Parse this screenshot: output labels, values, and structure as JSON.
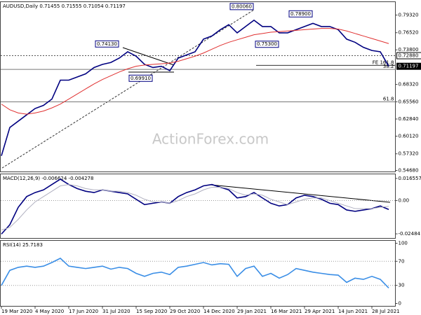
{
  "chart_data": [
    {
      "type": "line",
      "title": "AUDUSD,Daily  0.71455 0.71555 0.71054 0.71197",
      "categories": [
        "19 Mar 2020",
        null,
        null,
        null,
        "4 May 2020",
        null,
        null,
        null,
        "17 Jun 2020",
        null,
        null,
        null,
        "31 Jul 2020",
        null,
        null,
        null,
        "15 Sep 2020",
        null,
        null,
        null,
        "29 Oct 2020",
        null,
        null,
        null,
        "14 Dec 2020",
        null,
        null,
        null,
        "29 Jan 2021",
        null,
        null,
        null,
        "16 Mar 2021",
        null,
        null,
        null,
        "29 Apr 2021",
        null,
        null,
        null,
        "14 Jun 2021",
        null,
        null,
        null,
        "28 Jul 2021",
        null,
        null
      ],
      "series": [
        {
          "color": "#000080",
          "values": [
            0.57,
            0.615,
            0.625,
            0.635,
            0.645,
            0.65,
            0.66,
            0.69,
            0.69,
            0.695,
            0.7,
            0.71,
            0.715,
            0.718,
            0.725,
            0.735,
            0.728,
            0.715,
            0.71,
            0.712,
            0.705,
            0.725,
            0.73,
            0.735,
            0.755,
            0.76,
            0.77,
            0.778,
            0.765,
            0.775,
            0.785,
            0.775,
            0.775,
            0.765,
            0.765,
            0.77,
            0.775,
            0.78,
            0.775,
            0.775,
            0.77,
            0.755,
            0.75,
            0.742,
            0.737,
            0.735,
            0.71197
          ]
        },
        {
          "color": "#e03030",
          "values": [
            0.652,
            0.643,
            0.638,
            0.636,
            0.638,
            0.641,
            0.646,
            0.652,
            0.66,
            0.668,
            0.676,
            0.684,
            0.691,
            0.697,
            0.703,
            0.708,
            0.712,
            0.714,
            0.715,
            0.716,
            0.717,
            0.72,
            0.724,
            0.728,
            0.733,
            0.739,
            0.745,
            0.75,
            0.754,
            0.758,
            0.762,
            0.764,
            0.766,
            0.767,
            0.768,
            0.769,
            0.77,
            0.771,
            0.772,
            0.772,
            0.771,
            0.768,
            0.764,
            0.76,
            0.756,
            0.752,
            0.748
          ]
        }
      ],
      "ylim": [
        0.5446,
        0.8143
      ],
      "yticks": [
        {
          "value": 0.7932,
          "label": "0.79320"
        },
        {
          "value": 0.7652,
          "label": "0.76520"
        },
        {
          "value": 0.738,
          "label": "0.73800"
        },
        {
          "value": 0.6832,
          "label": "0.68320"
        },
        {
          "value": 0.6556,
          "label": "0.65560"
        },
        {
          "value": 0.6284,
          "label": "0.62840"
        },
        {
          "value": 0.6012,
          "label": "0.60120"
        },
        {
          "value": 0.5732,
          "label": "0.57320"
        },
        {
          "value": 0.5468,
          "label": "0.54680"
        }
      ],
      "markers": [
        {
          "value": 0.7288,
          "label": "0.72880"
        },
        {
          "value": 0.71197,
          "label": "0.71197"
        }
      ],
      "annotations": [
        {
          "value": 0.8006,
          "label": "0.80060",
          "point": 30
        },
        {
          "value": 0.789,
          "label": "0.78900",
          "point": 37
        },
        {
          "value": 0.753,
          "label": "0.75300",
          "point": 33
        },
        {
          "value": 0.7413,
          "label": "0.74130",
          "point": 14
        },
        {
          "value": 0.6991,
          "label": "0.69910",
          "point": 18
        }
      ],
      "levels": [
        {
          "label": "FE 161.8",
          "value": 0.7135
        },
        {
          "label": "38.2",
          "value": 0.707
        },
        {
          "label": "61.8",
          "value": 0.6556
        }
      ],
      "watermark": "ActionForex.com"
    },
    {
      "type": "line",
      "title": "MACD(12,26,9) -0.006624 -0.004278",
      "series": [
        {
          "color": "#000080",
          "values": [
            -0.025,
            -0.018,
            -0.005,
            0.003,
            0.006,
            0.008,
            0.012,
            0.016,
            0.012,
            0.009,
            0.007,
            0.006,
            0.008,
            0.007,
            0.006,
            0.005,
            0.001,
            -0.003,
            -0.002,
            -0.001,
            -0.002,
            0.003,
            0.006,
            0.008,
            0.011,
            0.012,
            0.01,
            0.008,
            0.002,
            0.003,
            0.006,
            0.002,
            -0.002,
            -0.004,
            -0.003,
            0.002,
            0.004,
            0.003,
            0.001,
            -0.002,
            -0.003,
            -0.007,
            -0.008,
            -0.007,
            -0.006,
            -0.004,
            -0.006624
          ]
        },
        {
          "color": "#b0b0c0",
          "values": [
            -0.022,
            -0.02,
            -0.014,
            -0.007,
            -0.001,
            0.003,
            0.007,
            0.011,
            0.012,
            0.011,
            0.009,
            0.008,
            0.008,
            0.007,
            0.007,
            0.006,
            0.004,
            0.001,
            -0.001,
            -0.001,
            -0.002,
            0,
            0.003,
            0.005,
            0.008,
            0.01,
            0.01,
            0.009,
            0.006,
            0.004,
            0.005,
            0.004,
            0.001,
            -0.001,
            -0.003,
            -0.001,
            0.001,
            0.002,
            0.002,
            0,
            -0.002,
            -0.004,
            -0.006,
            -0.006,
            -0.006,
            -0.005,
            -0.004278
          ]
        }
      ],
      "ylim": [
        -0.0282,
        0.0199
      ],
      "yticks": [
        0.016557,
        {
          "value": 0,
          "label": "0.00"
        },
        -0.02484
      ]
    },
    {
      "type": "line",
      "title": "RSI(14) 25.7183",
      "series": [
        {
          "color": "#3a8ee6",
          "values": [
            30,
            55,
            60,
            62,
            60,
            62,
            68,
            75,
            62,
            60,
            58,
            60,
            62,
            57,
            60,
            58,
            50,
            45,
            50,
            52,
            48,
            60,
            62,
            65,
            68,
            64,
            66,
            65,
            45,
            58,
            62,
            45,
            50,
            42,
            48,
            58,
            55,
            52,
            50,
            48,
            47,
            35,
            42,
            40,
            45,
            40,
            25.7183
          ]
        }
      ],
      "ylim": [
        -4.65,
        104.65
      ],
      "yticks": [
        100,
        70,
        30,
        0
      ]
    }
  ]
}
